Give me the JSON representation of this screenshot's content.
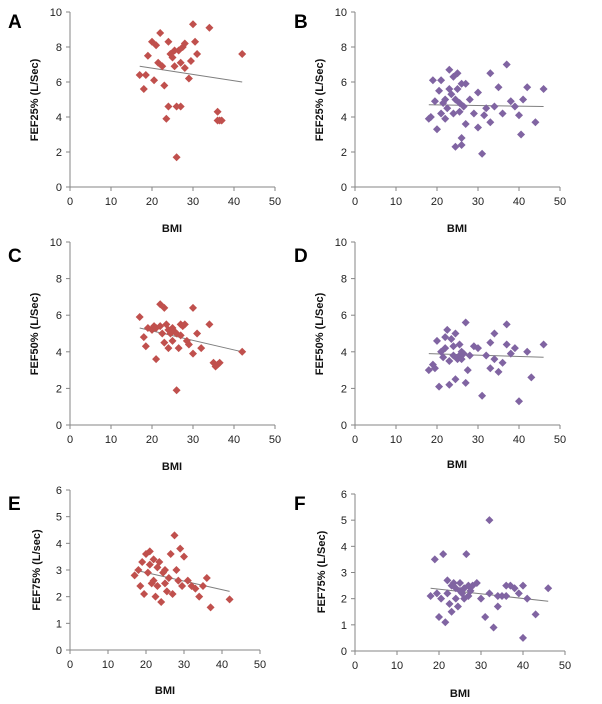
{
  "colors": {
    "red": "#C0504D",
    "purple": "#8064A2",
    "trend": "#7f7f7f",
    "axis": "#868686"
  },
  "chart_data": [
    {
      "type": "scatter",
      "panel": "A",
      "xlabel": "BMI",
      "ylabel": "FEF25% (L/Sec)",
      "xlim": [
        0,
        50
      ],
      "ylim": [
        0,
        10
      ],
      "xticks": [
        0,
        10,
        20,
        30,
        40,
        50
      ],
      "yticks": [
        0,
        2,
        4,
        6,
        8,
        10
      ],
      "color": "red",
      "trend": [
        [
          17,
          6.9
        ],
        [
          42,
          6.0
        ]
      ],
      "points": [
        [
          17,
          6.4
        ],
        [
          18,
          5.6
        ],
        [
          18.5,
          6.4
        ],
        [
          19,
          7.5
        ],
        [
          20,
          8.3
        ],
        [
          20.5,
          6.1
        ],
        [
          21,
          8.1
        ],
        [
          21.5,
          7.1
        ],
        [
          22,
          8.8
        ],
        [
          22.5,
          6.9
        ],
        [
          23,
          5.8
        ],
        [
          23.5,
          3.9
        ],
        [
          24,
          8.3
        ],
        [
          24,
          4.6
        ],
        [
          24.5,
          7.6
        ],
        [
          25,
          7.4
        ],
        [
          25.5,
          7.8
        ],
        [
          25.5,
          6.9
        ],
        [
          26,
          1.7
        ],
        [
          26,
          4.6
        ],
        [
          26.5,
          7.8
        ],
        [
          27,
          7.1
        ],
        [
          27,
          4.6
        ],
        [
          27.5,
          8.0
        ],
        [
          28,
          6.8
        ],
        [
          28,
          8.2
        ],
        [
          29,
          6.2
        ],
        [
          29.5,
          7.2
        ],
        [
          30,
          9.3
        ],
        [
          30.5,
          8.3
        ],
        [
          31,
          7.6
        ],
        [
          34,
          9.1
        ],
        [
          36,
          3.8
        ],
        [
          36,
          4.3
        ],
        [
          36.5,
          3.8
        ],
        [
          37,
          3.8
        ],
        [
          42,
          7.6
        ]
      ]
    },
    {
      "type": "scatter",
      "panel": "B",
      "xlabel": "BMI",
      "ylabel": "FEF25% (L/Sec)",
      "xlim": [
        0,
        50
      ],
      "ylim": [
        0,
        10
      ],
      "xticks": [
        0,
        10,
        20,
        30,
        40,
        50
      ],
      "yticks": [
        0,
        2,
        4,
        6,
        8,
        10
      ],
      "color": "purple",
      "trend": [
        [
          18,
          4.7
        ],
        [
          46,
          4.6
        ]
      ],
      "points": [
        [
          18,
          3.9
        ],
        [
          18.5,
          4.0
        ],
        [
          19,
          6.1
        ],
        [
          19.5,
          4.9
        ],
        [
          20,
          3.3
        ],
        [
          20.5,
          5.5
        ],
        [
          21,
          6.1
        ],
        [
          21,
          4.2
        ],
        [
          21.5,
          4.8
        ],
        [
          22,
          5.0
        ],
        [
          22,
          3.9
        ],
        [
          22.5,
          4.5
        ],
        [
          23,
          5.6
        ],
        [
          23,
          6.7
        ],
        [
          23.5,
          5.3
        ],
        [
          24,
          6.3
        ],
        [
          24,
          4.2
        ],
        [
          24.5,
          5.0
        ],
        [
          24.5,
          2.3
        ],
        [
          25,
          5.6
        ],
        [
          25,
          6.5
        ],
        [
          25.5,
          4.3
        ],
        [
          25.5,
          4.8
        ],
        [
          26,
          5.9
        ],
        [
          26,
          2.4
        ],
        [
          26,
          2.8
        ],
        [
          26.5,
          4.6
        ],
        [
          27,
          5.9
        ],
        [
          27,
          3.6
        ],
        [
          28,
          5.0
        ],
        [
          29,
          4.2
        ],
        [
          30,
          5.4
        ],
        [
          30,
          3.4
        ],
        [
          31,
          1.9
        ],
        [
          31.5,
          4.1
        ],
        [
          32,
          4.5
        ],
        [
          33,
          6.5
        ],
        [
          33,
          3.7
        ],
        [
          34,
          4.6
        ],
        [
          35,
          5.7
        ],
        [
          36,
          4.2
        ],
        [
          37,
          7.0
        ],
        [
          38,
          4.9
        ],
        [
          39,
          4.6
        ],
        [
          40,
          4.1
        ],
        [
          40.5,
          3.0
        ],
        [
          41,
          5.0
        ],
        [
          42,
          5.7
        ],
        [
          44,
          3.7
        ],
        [
          46,
          5.6
        ]
      ]
    },
    {
      "type": "scatter",
      "panel": "C",
      "xlabel": "BMI",
      "ylabel": "FEF50% (L/Sec)",
      "xlim": [
        0,
        50
      ],
      "ylim": [
        0,
        10
      ],
      "xticks": [
        0,
        10,
        20,
        30,
        40,
        50
      ],
      "yticks": [
        0,
        2,
        4,
        6,
        8,
        10
      ],
      "color": "red",
      "trend": [
        [
          17,
          5.3
        ],
        [
          42,
          4.0
        ]
      ],
      "points": [
        [
          17,
          5.9
        ],
        [
          18,
          4.8
        ],
        [
          18.5,
          4.3
        ],
        [
          19,
          5.3
        ],
        [
          20,
          5.2
        ],
        [
          20.5,
          5.4
        ],
        [
          21,
          3.6
        ],
        [
          21,
          5.3
        ],
        [
          22,
          6.6
        ],
        [
          22,
          5.4
        ],
        [
          22.5,
          5.0
        ],
        [
          23,
          6.4
        ],
        [
          23,
          4.5
        ],
        [
          23.5,
          5.5
        ],
        [
          24,
          4.2
        ],
        [
          24,
          5.2
        ],
        [
          24.5,
          5.0
        ],
        [
          25,
          5.3
        ],
        [
          25,
          4.6
        ],
        [
          25.5,
          5.1
        ],
        [
          26,
          1.9
        ],
        [
          26,
          5.0
        ],
        [
          26.5,
          4.2
        ],
        [
          27,
          5.5
        ],
        [
          27,
          4.9
        ],
        [
          27.5,
          5.4
        ],
        [
          28,
          5.5
        ],
        [
          28.5,
          4.6
        ],
        [
          29,
          4.4
        ],
        [
          30,
          6.4
        ],
        [
          30,
          3.9
        ],
        [
          31,
          5.0
        ],
        [
          32,
          4.2
        ],
        [
          34,
          5.5
        ],
        [
          35,
          3.4
        ],
        [
          35.5,
          3.2
        ],
        [
          36,
          3.3
        ],
        [
          36.5,
          3.4
        ],
        [
          42,
          4.0
        ]
      ]
    },
    {
      "type": "scatter",
      "panel": "D",
      "xlabel": "BMI",
      "ylabel": "FEF50% (L/Sec)",
      "xlim": [
        0,
        50
      ],
      "ylim": [
        0,
        10
      ],
      "xticks": [
        0,
        10,
        20,
        30,
        40,
        50
      ],
      "yticks": [
        0,
        2,
        4,
        6,
        8,
        10
      ],
      "color": "purple",
      "trend": [
        [
          18,
          3.9
        ],
        [
          46,
          3.7
        ]
      ],
      "points": [
        [
          18,
          3.0
        ],
        [
          19,
          3.3
        ],
        [
          19.5,
          3.1
        ],
        [
          20,
          4.6
        ],
        [
          20.5,
          2.1
        ],
        [
          21,
          4.0
        ],
        [
          21.5,
          3.7
        ],
        [
          22,
          4.8
        ],
        [
          22,
          4.2
        ],
        [
          22.5,
          5.2
        ],
        [
          23,
          2.2
        ],
        [
          23,
          3.5
        ],
        [
          23.5,
          4.7
        ],
        [
          24,
          4.3
        ],
        [
          24,
          3.8
        ],
        [
          24.5,
          5.0
        ],
        [
          24.5,
          2.5
        ],
        [
          25,
          3.6
        ],
        [
          25.5,
          4.4
        ],
        [
          25.5,
          3.8
        ],
        [
          26,
          4.0
        ],
        [
          26,
          3.6
        ],
        [
          26.5,
          3.9
        ],
        [
          27,
          5.6
        ],
        [
          27,
          2.3
        ],
        [
          27.5,
          3.0
        ],
        [
          28,
          3.8
        ],
        [
          29,
          4.3
        ],
        [
          30,
          4.2
        ],
        [
          31,
          1.6
        ],
        [
          32,
          3.8
        ],
        [
          33,
          4.5
        ],
        [
          33,
          3.1
        ],
        [
          34,
          3.6
        ],
        [
          34,
          5.0
        ],
        [
          35,
          2.9
        ],
        [
          36,
          3.4
        ],
        [
          37,
          5.5
        ],
        [
          37,
          4.4
        ],
        [
          38,
          3.9
        ],
        [
          39,
          4.2
        ],
        [
          40,
          1.3
        ],
        [
          42,
          4.0
        ],
        [
          43,
          2.6
        ],
        [
          46,
          4.4
        ]
      ]
    },
    {
      "type": "scatter",
      "panel": "E",
      "xlabel": "BMI",
      "ylabel": "FEF75% (L/sec)",
      "xlim": [
        0,
        50
      ],
      "ylim": [
        0,
        6
      ],
      "xticks": [
        0,
        10,
        20,
        30,
        40,
        50
      ],
      "yticks": [
        0,
        1,
        2,
        3,
        4,
        5,
        6
      ],
      "color": "red",
      "trend": [
        [
          17,
          3.0
        ],
        [
          42,
          2.2
        ]
      ],
      "points": [
        [
          17,
          2.8
        ],
        [
          18,
          3.0
        ],
        [
          18.5,
          2.4
        ],
        [
          19,
          3.3
        ],
        [
          19.5,
          2.1
        ],
        [
          20,
          3.6
        ],
        [
          20.5,
          2.9
        ],
        [
          21,
          3.7
        ],
        [
          21,
          3.2
        ],
        [
          21.5,
          2.5
        ],
        [
          22,
          2.6
        ],
        [
          22,
          3.4
        ],
        [
          22.5,
          2.0
        ],
        [
          23,
          3.1
        ],
        [
          23,
          2.4
        ],
        [
          23.5,
          3.3
        ],
        [
          24,
          1.8
        ],
        [
          24.5,
          2.9
        ],
        [
          25,
          2.5
        ],
        [
          25,
          3.0
        ],
        [
          25.5,
          2.2
        ],
        [
          26,
          2.7
        ],
        [
          26.5,
          3.6
        ],
        [
          27,
          2.1
        ],
        [
          27.5,
          4.3
        ],
        [
          28,
          3.0
        ],
        [
          28.5,
          2.6
        ],
        [
          29,
          3.8
        ],
        [
          29.5,
          2.4
        ],
        [
          30,
          3.5
        ],
        [
          31,
          2.6
        ],
        [
          32,
          2.4
        ],
        [
          33,
          2.3
        ],
        [
          34,
          2.0
        ],
        [
          35,
          2.4
        ],
        [
          36,
          2.7
        ],
        [
          37,
          1.6
        ],
        [
          42,
          1.9
        ]
      ]
    },
    {
      "type": "scatter",
      "panel": "F",
      "xlabel": "BMI",
      "ylabel": "FEF75% (L/Sec)",
      "xlim": [
        0,
        50
      ],
      "ylim": [
        0,
        6
      ],
      "xticks": [
        0,
        10,
        20,
        30,
        40,
        50
      ],
      "yticks": [
        0,
        1,
        2,
        3,
        4,
        5,
        6
      ],
      "color": "purple",
      "trend": [
        [
          18,
          2.4
        ],
        [
          46,
          1.9
        ]
      ],
      "points": [
        [
          18,
          2.1
        ],
        [
          19,
          3.5
        ],
        [
          19.5,
          2.2
        ],
        [
          20,
          1.3
        ],
        [
          20.5,
          2.0
        ],
        [
          21,
          3.7
        ],
        [
          21.5,
          1.1
        ],
        [
          22,
          2.7
        ],
        [
          22,
          2.2
        ],
        [
          22.5,
          1.8
        ],
        [
          23,
          2.5
        ],
        [
          23,
          1.5
        ],
        [
          23.5,
          2.6
        ],
        [
          24,
          2.0
        ],
        [
          24,
          2.4
        ],
        [
          24.5,
          1.7
        ],
        [
          25,
          2.3
        ],
        [
          25,
          2.6
        ],
        [
          25.5,
          2.2
        ],
        [
          26,
          2.4
        ],
        [
          26,
          2.0
        ],
        [
          26.5,
          3.7
        ],
        [
          27,
          2.5
        ],
        [
          27,
          2.1
        ],
        [
          27.5,
          2.3
        ],
        [
          28,
          2.5
        ],
        [
          29,
          2.6
        ],
        [
          30,
          2.0
        ],
        [
          31,
          1.3
        ],
        [
          32,
          5.0
        ],
        [
          32,
          2.2
        ],
        [
          33,
          0.9
        ],
        [
          34,
          2.1
        ],
        [
          34,
          1.7
        ],
        [
          35,
          2.1
        ],
        [
          36,
          2.5
        ],
        [
          36,
          2.1
        ],
        [
          37,
          2.5
        ],
        [
          38,
          2.4
        ],
        [
          39,
          2.2
        ],
        [
          40,
          2.5
        ],
        [
          40,
          0.5
        ],
        [
          41,
          2.0
        ],
        [
          43,
          1.4
        ],
        [
          46,
          2.4
        ]
      ]
    }
  ]
}
